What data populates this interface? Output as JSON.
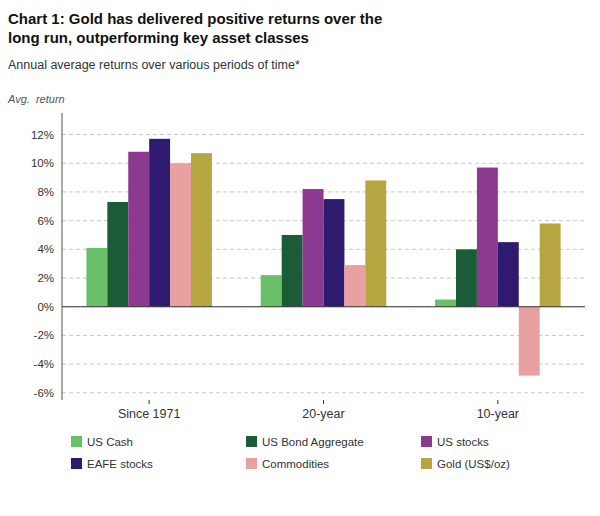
{
  "chart_data": {
    "type": "bar",
    "title": "Chart 1: Gold has delivered positive returns over the\nlong run, outperforming key asset classes",
    "subtitle": "Annual average returns over various periods of time*",
    "ylabel": "Avg.  return",
    "categories": [
      "Since 1971",
      "20-year",
      "10-year"
    ],
    "series": [
      {
        "name": "US Cash",
        "color": "#6abf69",
        "values": [
          4.1,
          2.2,
          0.5
        ]
      },
      {
        "name": "US Bond Aggregate",
        "color": "#1a5c38",
        "values": [
          7.3,
          5.0,
          4.0
        ]
      },
      {
        "name": "US stocks",
        "color": "#8b3a8f",
        "values": [
          10.8,
          8.2,
          9.7
        ]
      },
      {
        "name": "EAFE stocks",
        "color": "#2e1a6e",
        "values": [
          11.7,
          7.5,
          4.5
        ]
      },
      {
        "name": "Commodities",
        "color": "#e8a0a0",
        "values": [
          10.0,
          2.9,
          -4.8
        ]
      },
      {
        "name": "Gold (US$/oz)",
        "color": "#b5a642",
        "values": [
          10.7,
          8.8,
          5.8
        ]
      }
    ],
    "ylim": [
      -6.5,
      13.5
    ],
    "yticks": [
      {
        "value": -6,
        "label": "-6%"
      },
      {
        "value": -4,
        "label": "-4%"
      },
      {
        "value": -2,
        "label": "-2%"
      },
      {
        "value": 0,
        "label": "0%"
      },
      {
        "value": 2,
        "label": "2%"
      },
      {
        "value": 4,
        "label": "4%"
      },
      {
        "value": 6,
        "label": "6%"
      },
      {
        "value": 8,
        "label": "8%"
      },
      {
        "value": 10,
        "label": "10%"
      },
      {
        "value": 12,
        "label": "12%"
      }
    ],
    "grid": true,
    "legend": "bottom"
  }
}
